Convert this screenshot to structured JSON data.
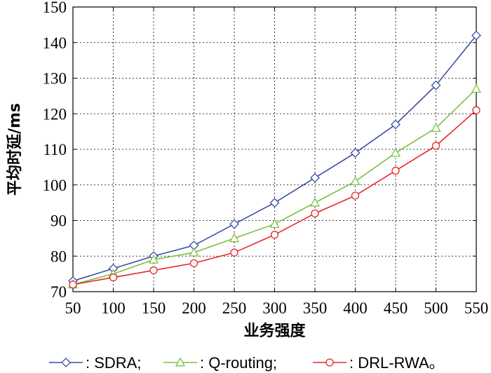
{
  "chart_data": {
    "type": "line",
    "title": "",
    "xlabel": "业务强度",
    "ylabel": "平均时延/ms",
    "x": [
      50,
      100,
      150,
      200,
      250,
      300,
      350,
      400,
      450,
      500,
      550
    ],
    "xlim": [
      50,
      550
    ],
    "ylim": [
      70,
      150
    ],
    "yticks": [
      70,
      80,
      90,
      100,
      110,
      120,
      130,
      140,
      150
    ],
    "grid": true,
    "legend_position": "bottom",
    "series": [
      {
        "name": "SDRA;",
        "legend_label": ": SDRA;",
        "color": "#3b4ea0",
        "marker": "diamond",
        "values": [
          73,
          76.5,
          80,
          83,
          89,
          95,
          102,
          109,
          117,
          128,
          142
        ]
      },
      {
        "name": "Q-routing;",
        "legend_label": ": Q-routing;",
        "color": "#7ac143",
        "marker": "triangle",
        "values": [
          72,
          75,
          79,
          81,
          85,
          89,
          95,
          101,
          109,
          116,
          127
        ]
      },
      {
        "name": "DRL-RWA。",
        "legend_label": ": DRL-RWA。",
        "color": "#e8262b",
        "marker": "circle",
        "values": [
          72,
          74,
          76,
          78,
          81,
          86,
          92,
          97,
          104,
          111,
          121
        ]
      }
    ]
  }
}
